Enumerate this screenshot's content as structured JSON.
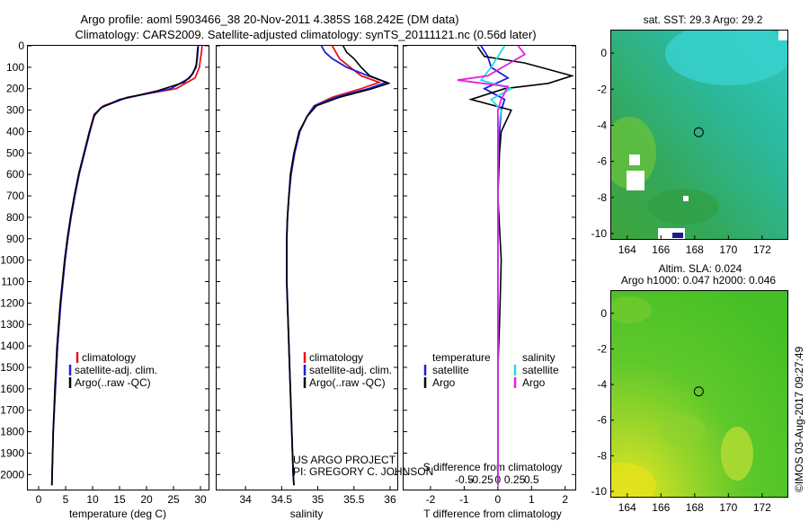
{
  "header": {
    "line1": "Argo profile: aoml 5903466_38 20-Nov-2011 4.385S 168.242E (DM data)",
    "line2": "Climatology: CARS2009. Satellite-adjusted climatology: synTS_20111121.nc (0.56d later)"
  },
  "colors": {
    "climatology": "#e8141e",
    "satellite": "#1e1edc",
    "argo": "#000000",
    "sal_satellite": "#22dde8",
    "sal_argo": "#e61ee6"
  },
  "credits": {
    "project": "US ARGO PROJECT",
    "pi": "PI: GREGORY C. JOHNSON",
    "stamp": "©IMOS 03-Aug-2017 09:27:49"
  },
  "maps": {
    "sst_title": "sat. SST: 29.3 Argo: 29.2",
    "sla_title1": "Altim. SLA: 0.024",
    "sla_title2": "Argo h1000: 0.047 h2000: 0.046",
    "x_ticks": [
      164,
      166,
      168,
      170,
      172
    ],
    "y_ticks": [
      0,
      -2,
      -4,
      -6,
      -8,
      -10
    ],
    "x_range": [
      163.0,
      173.5
    ],
    "y_range": [
      -10.3,
      1.3
    ],
    "float_position": {
      "lon": 168.242,
      "lat": -4.385
    }
  },
  "chart_data": [
    {
      "type": "line",
      "title": "",
      "xlabel": "temperature (deg C)",
      "ylabel": "",
      "xlim": [
        -2,
        31.5
      ],
      "ylim": [
        2070,
        0
      ],
      "x_ticks": [
        0,
        5,
        10,
        15,
        20,
        25,
        30
      ],
      "y_ticks": [
        0,
        100,
        200,
        300,
        400,
        500,
        600,
        700,
        800,
        900,
        1000,
        1100,
        1200,
        1300,
        1400,
        1500,
        1600,
        1700,
        1800,
        1900,
        2000
      ],
      "legend": [
        "climatology",
        "satellite-adj. clim.",
        "Argo(..raw -QC)"
      ],
      "series": [
        {
          "name": "climatology",
          "color_key": "climatology",
          "points": [
            [
              30.3,
              0
            ],
            [
              30.2,
              30
            ],
            [
              30.0,
              60
            ],
            [
              29.8,
              100
            ],
            [
              29.0,
              150
            ],
            [
              25.5,
              200
            ],
            [
              16.5,
              240
            ],
            [
              12.0,
              280
            ],
            [
              10.4,
              320
            ],
            [
              9.5,
              400
            ],
            [
              8.5,
              500
            ],
            [
              7.5,
              600
            ],
            [
              6.7,
              700
            ],
            [
              6.0,
              800
            ],
            [
              5.4,
              900
            ],
            [
              4.9,
              1000
            ],
            [
              4.5,
              1100
            ],
            [
              4.1,
              1200
            ],
            [
              3.8,
              1300
            ],
            [
              3.5,
              1400
            ],
            [
              3.3,
              1500
            ],
            [
              3.1,
              1600
            ],
            [
              2.9,
              1700
            ],
            [
              2.7,
              1800
            ],
            [
              2.6,
              1900
            ],
            [
              2.5,
              2000
            ],
            [
              2.45,
              2050
            ]
          ]
        },
        {
          "name": "satellite-adj. clim.",
          "color_key": "satellite",
          "points": [
            [
              29.6,
              0
            ],
            [
              29.5,
              30
            ],
            [
              29.4,
              60
            ],
            [
              29.2,
              100
            ],
            [
              28.0,
              150
            ],
            [
              24.5,
              200
            ],
            [
              16.0,
              245
            ],
            [
              11.8,
              285
            ],
            [
              10.3,
              320
            ],
            [
              9.5,
              400
            ],
            [
              8.5,
              500
            ],
            [
              7.5,
              600
            ],
            [
              6.7,
              700
            ],
            [
              6.0,
              800
            ],
            [
              5.4,
              900
            ],
            [
              4.9,
              1000
            ],
            [
              4.5,
              1100
            ],
            [
              4.1,
              1200
            ],
            [
              3.8,
              1300
            ],
            [
              3.5,
              1400
            ],
            [
              3.3,
              1500
            ],
            [
              3.1,
              1600
            ],
            [
              2.9,
              1700
            ],
            [
              2.7,
              1800
            ],
            [
              2.6,
              1900
            ],
            [
              2.5,
              2000
            ],
            [
              2.45,
              2050
            ]
          ]
        },
        {
          "name": "Argo(..raw -QC)",
          "color_key": "argo",
          "points": [
            [
              29.5,
              5
            ],
            [
              29.4,
              40
            ],
            [
              29.3,
              70
            ],
            [
              29.2,
              90
            ],
            [
              28.6,
              130
            ],
            [
              27.0,
              170
            ],
            [
              22.0,
              210
            ],
            [
              15.0,
              250
            ],
            [
              11.5,
              290
            ],
            [
              10.2,
              330
            ],
            [
              9.4,
              400
            ],
            [
              8.4,
              500
            ],
            [
              7.4,
              600
            ],
            [
              6.6,
              700
            ],
            [
              5.9,
              800
            ],
            [
              5.3,
              900
            ],
            [
              4.8,
              1000
            ],
            [
              4.4,
              1100
            ],
            [
              4.0,
              1200
            ],
            [
              3.7,
              1300
            ],
            [
              3.4,
              1400
            ],
            [
              3.2,
              1500
            ],
            [
              3.0,
              1600
            ],
            [
              2.85,
              1700
            ],
            [
              2.7,
              1800
            ],
            [
              2.6,
              1900
            ],
            [
              2.5,
              2000
            ],
            [
              2.45,
              2050
            ]
          ]
        }
      ]
    },
    {
      "type": "line",
      "title": "",
      "xlabel": "salinity",
      "ylabel": "",
      "xlim": [
        33.6,
        36.1
      ],
      "ylim": [
        2070,
        0
      ],
      "x_ticks": [
        34,
        34.5,
        35,
        35.5,
        36
      ],
      "legend": [
        "climatology",
        "satellite-adj. clim.",
        "Argo(..raw -QC)"
      ],
      "series": [
        {
          "name": "climatology",
          "color_key": "climatology",
          "points": [
            [
              35.2,
              0
            ],
            [
              35.25,
              30
            ],
            [
              35.3,
              60
            ],
            [
              35.45,
              100
            ],
            [
              35.6,
              140
            ],
            [
              35.85,
              170
            ],
            [
              35.6,
              200
            ],
            [
              35.2,
              240
            ],
            [
              34.95,
              280
            ],
            [
              34.85,
              330
            ],
            [
              34.75,
              400
            ],
            [
              34.68,
              500
            ],
            [
              34.63,
              600
            ],
            [
              34.6,
              700
            ],
            [
              34.58,
              800
            ],
            [
              34.57,
              900
            ],
            [
              34.57,
              1000
            ],
            [
              34.57,
              1100
            ],
            [
              34.58,
              1200
            ],
            [
              34.59,
              1300
            ],
            [
              34.6,
              1400
            ],
            [
              34.61,
              1500
            ],
            [
              34.62,
              1600
            ],
            [
              34.63,
              1700
            ],
            [
              34.64,
              1800
            ],
            [
              34.65,
              1900
            ],
            [
              34.66,
              2000
            ],
            [
              34.67,
              2050
            ]
          ]
        },
        {
          "name": "satellite-adj. clim.",
          "color_key": "satellite",
          "points": [
            [
              35.05,
              0
            ],
            [
              35.1,
              30
            ],
            [
              35.2,
              60
            ],
            [
              35.4,
              100
            ],
            [
              35.7,
              140
            ],
            [
              35.95,
              170
            ],
            [
              35.7,
              200
            ],
            [
              35.25,
              240
            ],
            [
              34.95,
              280
            ],
            [
              34.85,
              330
            ],
            [
              34.75,
              400
            ],
            [
              34.68,
              500
            ],
            [
              34.63,
              600
            ],
            [
              34.6,
              700
            ],
            [
              34.58,
              800
            ],
            [
              34.57,
              900
            ],
            [
              34.57,
              1000
            ],
            [
              34.57,
              1100
            ],
            [
              34.58,
              1200
            ],
            [
              34.59,
              1300
            ],
            [
              34.6,
              1400
            ],
            [
              34.61,
              1500
            ],
            [
              34.62,
              1600
            ],
            [
              34.63,
              1700
            ],
            [
              34.64,
              1800
            ],
            [
              34.65,
              1900
            ],
            [
              34.66,
              2000
            ],
            [
              34.67,
              2050
            ]
          ]
        },
        {
          "name": "Argo(..raw -QC)",
          "color_key": "argo",
          "points": [
            [
              35.35,
              0
            ],
            [
              35.4,
              30
            ],
            [
              35.5,
              60
            ],
            [
              35.6,
              100
            ],
            [
              35.72,
              140
            ],
            [
              35.98,
              175
            ],
            [
              35.75,
              200
            ],
            [
              35.3,
              240
            ],
            [
              34.98,
              280
            ],
            [
              34.85,
              330
            ],
            [
              34.74,
              400
            ],
            [
              34.67,
              500
            ],
            [
              34.62,
              600
            ],
            [
              34.6,
              700
            ],
            [
              34.58,
              800
            ],
            [
              34.57,
              900
            ],
            [
              34.57,
              1000
            ],
            [
              34.57,
              1100
            ],
            [
              34.58,
              1200
            ],
            [
              34.59,
              1300
            ],
            [
              34.6,
              1400
            ],
            [
              34.61,
              1500
            ],
            [
              34.62,
              1600
            ],
            [
              34.63,
              1700
            ],
            [
              34.64,
              1800
            ],
            [
              34.65,
              1900
            ],
            [
              34.66,
              2000
            ],
            [
              34.67,
              2050
            ]
          ]
        }
      ]
    },
    {
      "type": "line",
      "title": "",
      "xlabel": "T difference from climatology",
      "xlabel2": "S difference from climatology",
      "ylabel": "",
      "xlim": [
        -2.8,
        2.3
      ],
      "ylim": [
        2070,
        0
      ],
      "x_ticks": [
        -2,
        -1,
        0,
        1,
        2
      ],
      "x_ticks_salinity": [
        -0.5,
        -0.25,
        0,
        0.25,
        0.5
      ],
      "legend_headers": [
        "temperature",
        "salinity"
      ],
      "legend": [
        "satellite",
        "Argo",
        "satellite",
        "Argo"
      ],
      "series": [
        {
          "name": "temperature satellite",
          "color_key": "satellite",
          "points": [
            [
              -0.5,
              0
            ],
            [
              -0.3,
              50
            ],
            [
              -0.2,
              100
            ],
            [
              0.3,
              150
            ],
            [
              -0.4,
              200
            ],
            [
              0.2,
              250
            ],
            [
              0.1,
              300
            ],
            [
              0.05,
              400
            ],
            [
              0,
              600
            ],
            [
              0,
              1000
            ],
            [
              0,
              2050
            ]
          ]
        },
        {
          "name": "temperature Argo",
          "color_key": "argo",
          "points": [
            [
              -0.6,
              5
            ],
            [
              -0.4,
              50
            ],
            [
              0.8,
              80
            ],
            [
              2.2,
              140
            ],
            [
              1.5,
              175
            ],
            [
              0.2,
              200
            ],
            [
              -0.8,
              250
            ],
            [
              0.4,
              300
            ],
            [
              0.1,
              400
            ],
            [
              0.05,
              500
            ],
            [
              0,
              700
            ],
            [
              0.1,
              1000
            ],
            [
              0.05,
              1300
            ],
            [
              0,
              1500
            ],
            [
              0,
              2050
            ]
          ]
        },
        {
          "name": "salinity satellite",
          "color_key": "sal_satellite",
          "points": [
            [
              0.2,
              0
            ],
            [
              -0.2,
              100
            ],
            [
              -0.5,
              160
            ],
            [
              0.4,
              200
            ],
            [
              -0.2,
              250
            ],
            [
              0.1,
              300
            ],
            [
              0,
              400
            ],
            [
              0,
              2050
            ]
          ]
        },
        {
          "name": "salinity Argo",
          "color_key": "sal_argo",
          "points": [
            [
              0.6,
              0
            ],
            [
              0.8,
              40
            ],
            [
              -0.3,
              140
            ],
            [
              -1.2,
              160
            ],
            [
              0.3,
              190
            ],
            [
              0.1,
              250
            ],
            [
              0,
              300
            ],
            [
              0,
              2050
            ]
          ]
        }
      ]
    }
  ]
}
